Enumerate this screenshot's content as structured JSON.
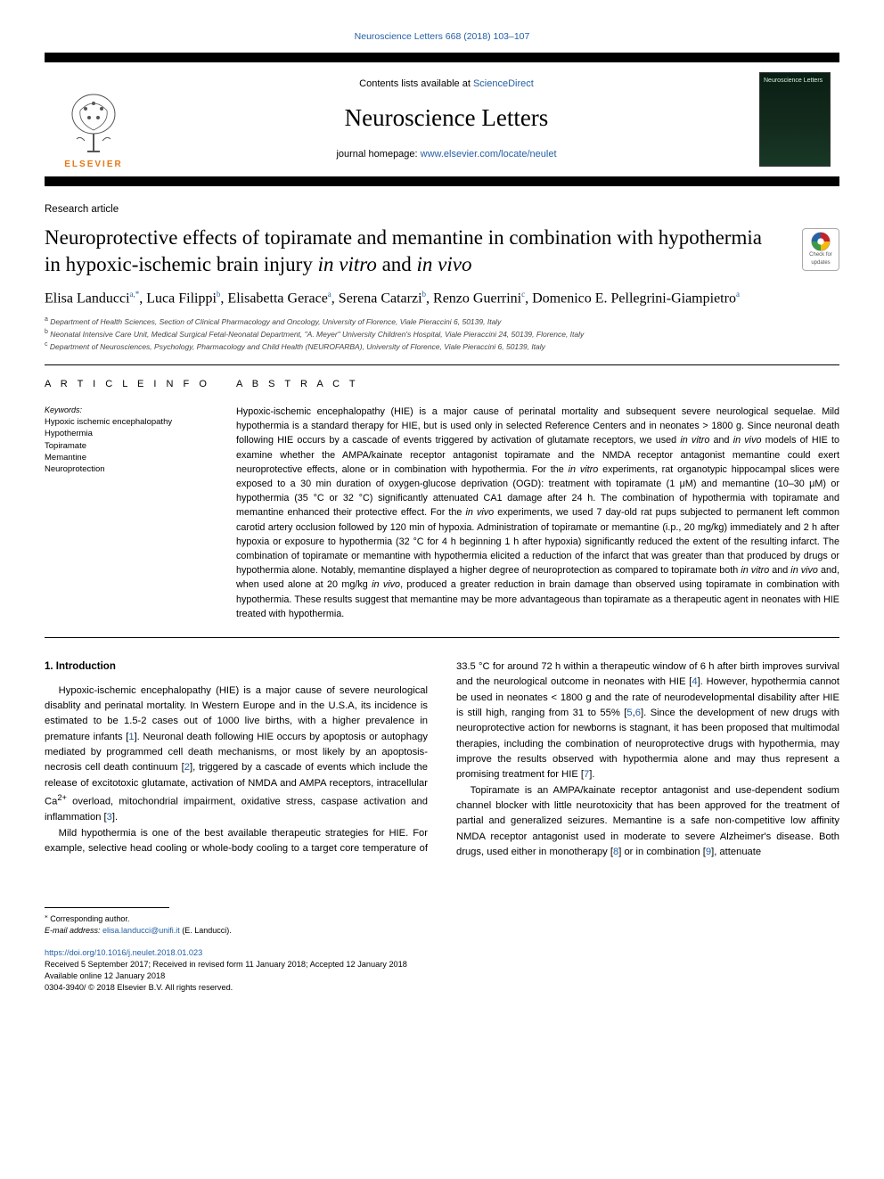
{
  "citation": "Neuroscience Letters 668 (2018) 103–107",
  "header": {
    "lists_prefix": "Contents lists available at ",
    "lists_link": "ScienceDirect",
    "journal": "Neuroscience Letters",
    "homepage_prefix": "journal homepage: ",
    "homepage_link": "www.elsevier.com/locate/neulet",
    "publisher_logo_text": "ELSEVIER",
    "cover_label": "Neuroscience Letters"
  },
  "article_type": "Research article",
  "title_html": "Neuroprotective effects of topiramate and memantine in combination with hypothermia in hypoxic-ischemic brain injury <em>in vitro</em> and <em>in vivo</em>",
  "crossmark_label": "Check for updates",
  "authors_html": "Elisa Landucci<sup><a>a</a>,<a>*</a></sup>, Luca Filippi<sup><a>b</a></sup>, Elisabetta Gerace<sup><a>a</a></sup>, Serena Catarzi<sup><a>b</a></sup>, Renzo Guerrini<sup><a>c</a></sup>, Domenico E. Pellegrini-Giampietro<sup><a>a</a></sup>",
  "affiliations": [
    {
      "sup": "a",
      "text": "Department of Health Sciences, Section of Clinical Pharmacology and Oncology, University of Florence, Viale Pieraccini 6, 50139, Italy"
    },
    {
      "sup": "b",
      "text": "Neonatal Intensive Care Unit, Medical Surgical Fetal-Neonatal Department, \"A. Meyer\" University Children's Hospital, Viale Pieraccini 24, 50139, Florence, Italy"
    },
    {
      "sup": "c",
      "text": "Department of Neurosciences, Psychology, Pharmacology and Child Health (NEUROFARBA), University of Florence, Viale Pieraccini 6, 50139, Italy"
    }
  ],
  "info_head": "A R T I C L E  I N F O",
  "abstract_head": "A B S T R A C T",
  "keywords_label": "Keywords:",
  "keywords": [
    "Hypoxic ischemic encephalopathy",
    "Hypothermia",
    "Topiramate",
    "Memantine",
    "Neuroprotection"
  ],
  "abstract_html": "Hypoxic-ischemic encephalopathy (HIE) is a major cause of perinatal mortality and subsequent severe neurological sequelae. Mild hypothermia is a standard therapy for HIE, but is used only in selected Reference Centers and in neonates &gt; 1800 g. Since neuronal death following HIE occurs by a cascade of events triggered by activation of glutamate receptors, we used <em>in vitro</em> and <em>in vivo</em> models of HIE to examine whether the AMPA/kainate receptor antagonist topiramate and the NMDA receptor antagonist memantine could exert neuroprotective effects, alone or in combination with hypothermia. For the <em>in vitro</em> experiments, rat organotypic hippocampal slices were exposed to a 30 min duration of oxygen-glucose deprivation (OGD): treatment with topiramate (1 μM) and memantine (10–30 μM) or hypothermia (35 °C or 32 °C) significantly attenuated CA1 damage after 24 h. The combination of hypothermia with topiramate and memantine enhanced their protective effect. For the <em>in vivo</em> experiments, we used 7 day-old rat pups subjected to permanent left common carotid artery occlusion followed by 120 min of hypoxia. Administration of topiramate or memantine (i.p., 20 mg/kg) immediately and 2 h after hypoxia or exposure to hypothermia (32 °C for 4 h beginning 1 h after hypoxia) significantly reduced the extent of the resulting infarct. The combination of topiramate or memantine with hypothermia elicited a reduction of the infarct that was greater than that produced by drugs or hypothermia alone. Notably, memantine displayed a higher degree of neuroprotection as compared to topiramate both <em>in vitro</em> and <em>in vivo</em> and, when used alone at 20 mg/kg <em>in vivo</em>, produced a greater reduction in brain damage than observed using topiramate in combination with hypothermia. These results suggest that memantine may be more advantageous than topiramate as a therapeutic agent in neonates with HIE treated with hypothermia.",
  "section1_head": "1. Introduction",
  "para1_html": "Hypoxic-ischemic encephalopathy (HIE) is a major cause of severe neurological disablity and perinatal mortality. In Western Europe and in the U.S.A, its incidence is estimated to be 1.5-2 cases out of 1000 live births, with a higher prevalence in premature infants [<a class=\"ref\">1</a>]. Neuronal death following HIE occurs by apoptosis or autophagy mediated by programmed cell death mechanisms, or most likely by an apoptosis-necrosis cell death continuum [<a class=\"ref\">2</a>], triggered by a cascade of events which include the release of excitotoxic glutamate, activation of NMDA and AMPA receptors, intracellular Ca<sup>2+</sup> overload, mitochondrial impairment, oxidative stress, caspase activation and inflammation [<a class=\"ref\">3</a>].",
  "para2_html": "Mild hypothermia is one of the best available therapeutic strategies for HIE. For example, selective head cooling or whole-body cooling to a target core temperature of 33.5 °C for around 72 h within a therapeutic window of 6 h after birth improves survival and the neurological outcome in neonates with HIE [<a class=\"ref\">4</a>]. However, hypothermia cannot be used in neonates &lt; 1800 g and the rate of neurodevelopmental disability after HIE is still high, ranging from 31 to 55% [<a class=\"ref\">5</a>,<a class=\"ref\">6</a>]. Since the development of new drugs with neuroprotective action for newborns is stagnant, it has been proposed that multimodal therapies, including the combination of neuroprotective drugs with hypothermia, may improve the results observed with hypothermia alone and may thus represent a promising treatment for HIE [<a class=\"ref\">7</a>].",
  "para3_html": "Topiramate is an AMPA/kainate receptor antagonist and use-dependent sodium channel blocker with little neurotoxicity that has been approved for the treatment of partial and generalized seizures. Memantine is a safe non-competitive low affinity NMDA receptor antagonist used in moderate to severe Alzheimer's disease. Both drugs, used either in monotherapy [<a class=\"ref\">8</a>] or in combination [<a class=\"ref\">9</a>], attenuate",
  "footnote": {
    "corresponding": "Corresponding author.",
    "email_label": "E-mail address:",
    "email": "elisa.landucci@unifi.it",
    "email_suffix": "(E. Landucci)."
  },
  "doi": "https://doi.org/10.1016/j.neulet.2018.01.023",
  "history": {
    "received": "Received 5 September 2017; Received in revised form 11 January 2018; Accepted 12 January 2018",
    "online": "Available online 12 January 2018",
    "copyright": "0304-3940/ © 2018 Elsevier B.V. All rights reserved."
  },
  "colors": {
    "link": "#2460a5",
    "elsevier_orange": "#e67817",
    "crossmark_red": "#c62127",
    "crossmark_yellow": "#f6b90d",
    "crossmark_blue": "#2862a6",
    "crossmark_green": "#3a9b46"
  }
}
